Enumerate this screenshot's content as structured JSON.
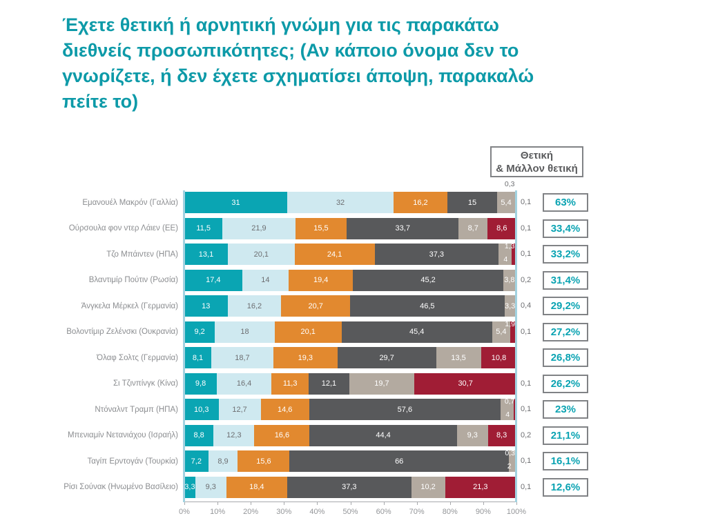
{
  "title_lines": [
    "Έχετε θετική ή αρνητική γνώμη για τις παρακάτω",
    "διεθνείς προσωπικότητες;  (Αν κάποιο όνομα δεν το",
    "γνωρίζετε, ή δεν έχετε σχηματίσει άποψη, παρακαλώ",
    "πείτε το)"
  ],
  "legend_box": {
    "line1": "Θετική",
    "line2": "& Μάλλον θετική"
  },
  "colors": {
    "title_teal": "#0d9aa8",
    "pct_teal": "#0aa3b2",
    "box_border": "#808285",
    "label_gray": "#6d6e71",
    "row_label_gray": "#8b8d90",
    "axis_gray": "#a7a9ac",
    "edge_blue": "#a2d2e0",
    "palette": [
      "#0aa5b3",
      "#cfe9f0",
      "#e2892f",
      "#58595b",
      "#b3aaa0",
      "#a01d35"
    ]
  },
  "chart_data": {
    "type": "bar",
    "orientation": "horizontal-stacked",
    "xlim": [
      0,
      100
    ],
    "x_ticks": [
      "0%",
      "10%",
      "20%",
      "30%",
      "40%",
      "50%",
      "60%",
      "70%",
      "80%",
      "90%",
      "100%"
    ],
    "legend": "Θετική & Μάλλον θετική",
    "segment_colors": [
      "#0aa5b3",
      "#cfe9f0",
      "#e2892f",
      "#58595b",
      "#b3aaa0",
      "#a01d35"
    ],
    "rows": [
      {
        "label": "Εμανουέλ Μακρόν (Γαλλία)",
        "pct": "63%",
        "outside": "0,1",
        "segments": [
          {
            "v": 31,
            "t": "31",
            "pos": "in"
          },
          {
            "v": 32,
            "t": "32",
            "pos": "in"
          },
          {
            "v": 16.2,
            "t": "16,2",
            "pos": "in"
          },
          {
            "v": 15,
            "t": "15",
            "pos": "in"
          },
          {
            "v": 5.4,
            "t": "5,4",
            "pos": "in"
          },
          {
            "v": 0.3,
            "t": "0,3",
            "pos": "top-out"
          }
        ]
      },
      {
        "label": "Ούρσουλα φον ντερ Λάιεν (ΕΕ)",
        "pct": "33,4%",
        "outside": "0,1",
        "segments": [
          {
            "v": 11.5,
            "t": "11,5",
            "pos": "in"
          },
          {
            "v": 21.9,
            "t": "21,9",
            "pos": "in"
          },
          {
            "v": 15.5,
            "t": "15,5",
            "pos": "in"
          },
          {
            "v": 33.7,
            "t": "33,7",
            "pos": "in"
          },
          {
            "v": 8.7,
            "t": "8,7",
            "pos": "in"
          },
          {
            "v": 8.6,
            "t": "8,6",
            "pos": "in"
          }
        ]
      },
      {
        "label": "Τζο Μπάιντεν (ΗΠΑ)",
        "pct": "33,2%",
        "outside": "0,1",
        "segments": [
          {
            "v": 13.1,
            "t": "13,1",
            "pos": "in"
          },
          {
            "v": 20.1,
            "t": "20,1",
            "pos": "in"
          },
          {
            "v": 24.1,
            "t": "24,1",
            "pos": "in"
          },
          {
            "v": 37.3,
            "t": "37,3",
            "pos": "in"
          },
          {
            "v": 4,
            "t": "4",
            "pos": "low-in"
          },
          {
            "v": 1.3,
            "t": "1,3",
            "pos": "top-in"
          }
        ]
      },
      {
        "label": "Βλαντιμίρ Πούτιν (Ρωσία)",
        "pct": "31,4%",
        "outside": "0,2",
        "segments": [
          {
            "v": 17.4,
            "t": "17,4",
            "pos": "in"
          },
          {
            "v": 14,
            "t": "14",
            "pos": "in"
          },
          {
            "v": 19.4,
            "t": "19,4",
            "pos": "in"
          },
          {
            "v": 45.2,
            "t": "45,2",
            "pos": "in"
          },
          {
            "v": 3.8,
            "t": "3,8",
            "pos": "in"
          },
          {
            "v": 0.3,
            "t": "",
            "pos": "none"
          }
        ]
      },
      {
        "label": "Άνγκελα Μέρκελ (Γερμανία)",
        "pct": "29,2%",
        "outside": "0,4",
        "segments": [
          {
            "v": 13,
            "t": "13",
            "pos": "in"
          },
          {
            "v": 16.2,
            "t": "16,2",
            "pos": "in"
          },
          {
            "v": 20.7,
            "t": "20,7",
            "pos": "in"
          },
          {
            "v": 46.5,
            "t": "46,5",
            "pos": "in"
          },
          {
            "v": 3.3,
            "t": "3,3",
            "pos": "in"
          },
          {
            "v": 0.3,
            "t": "",
            "pos": "none"
          }
        ]
      },
      {
        "label": "Βολοντίμιρ Ζελένσκι (Ουκρανία)",
        "pct": "27,2%",
        "outside": "0,1",
        "segments": [
          {
            "v": 9.2,
            "t": "9,2",
            "pos": "in"
          },
          {
            "v": 18,
            "t": "18",
            "pos": "in"
          },
          {
            "v": 20.1,
            "t": "20,1",
            "pos": "in"
          },
          {
            "v": 45.4,
            "t": "45,4",
            "pos": "in"
          },
          {
            "v": 5.4,
            "t": "5,4",
            "pos": "in"
          },
          {
            "v": 1.9,
            "t": "1,9",
            "pos": "top-in"
          }
        ]
      },
      {
        "label": "Όλαφ Σολτς (Γερμανία)",
        "pct": "26,8%",
        "outside": "",
        "segments": [
          {
            "v": 8.1,
            "t": "8,1",
            "pos": "in"
          },
          {
            "v": 18.7,
            "t": "18,7",
            "pos": "in"
          },
          {
            "v": 19.3,
            "t": "19,3",
            "pos": "in"
          },
          {
            "v": 29.7,
            "t": "29,7",
            "pos": "in"
          },
          {
            "v": 13.5,
            "t": "13,5",
            "pos": "in"
          },
          {
            "v": 10.8,
            "t": "10,8",
            "pos": "in"
          }
        ]
      },
      {
        "label": "Σι Τζινπίνγκ (Κίνα)",
        "pct": "26,2%",
        "outside": "0,1",
        "segments": [
          {
            "v": 9.8,
            "t": "9,8",
            "pos": "in"
          },
          {
            "v": 16.4,
            "t": "16,4",
            "pos": "in"
          },
          {
            "v": 11.3,
            "t": "11,3",
            "pos": "in"
          },
          {
            "v": 12.1,
            "t": "12,1",
            "pos": "in"
          },
          {
            "v": 19.7,
            "t": "19,7",
            "pos": "in"
          },
          {
            "v": 30.7,
            "t": "30,7",
            "pos": "in"
          }
        ]
      },
      {
        "label": "Ντόναλντ Τραμπ (ΗΠΑ)",
        "pct": "23%",
        "outside": "0,1",
        "segments": [
          {
            "v": 10.3,
            "t": "10,3",
            "pos": "in"
          },
          {
            "v": 12.7,
            "t": "12,7",
            "pos": "in"
          },
          {
            "v": 14.6,
            "t": "14,6",
            "pos": "in"
          },
          {
            "v": 57.6,
            "t": "57,6",
            "pos": "in"
          },
          {
            "v": 4,
            "t": "4",
            "pos": "low-in"
          },
          {
            "v": 0.7,
            "t": "0,7",
            "pos": "top-in"
          }
        ]
      },
      {
        "label": "Μπενιαμίν Νετανιάχου (Ισραήλ)",
        "pct": "21,1%",
        "outside": "0,2",
        "segments": [
          {
            "v": 8.8,
            "t": "8,8",
            "pos": "in"
          },
          {
            "v": 12.3,
            "t": "12,3",
            "pos": "in"
          },
          {
            "v": 16.6,
            "t": "16,6",
            "pos": "in"
          },
          {
            "v": 44.4,
            "t": "44,4",
            "pos": "in"
          },
          {
            "v": 9.3,
            "t": "9,3",
            "pos": "in"
          },
          {
            "v": 8.3,
            "t": "8,3",
            "pos": "in"
          }
        ]
      },
      {
        "label": "Ταγίπ Ερντογάν (Τουρκία)",
        "pct": "16,1%",
        "outside": "0,1",
        "segments": [
          {
            "v": 7.2,
            "t": "7,2",
            "pos": "in"
          },
          {
            "v": 8.9,
            "t": "8,9",
            "pos": "in"
          },
          {
            "v": 15.6,
            "t": "15,6",
            "pos": "in"
          },
          {
            "v": 66,
            "t": "66",
            "pos": "in"
          },
          {
            "v": 2,
            "t": "2",
            "pos": "low-in"
          },
          {
            "v": 0.3,
            "t": "0,3",
            "pos": "top-in"
          }
        ]
      },
      {
        "label": "Ρίσι Σούνακ (Ηνωμένο Βασίλειο)",
        "pct": "12,6%",
        "outside": "0,1",
        "segments": [
          {
            "v": 3.3,
            "t": "3,3",
            "pos": "in"
          },
          {
            "v": 9.3,
            "t": "9,3",
            "pos": "in"
          },
          {
            "v": 18.4,
            "t": "18,4",
            "pos": "in"
          },
          {
            "v": 37.3,
            "t": "37,3",
            "pos": "in"
          },
          {
            "v": 10.2,
            "t": "10,2",
            "pos": "in"
          },
          {
            "v": 21.3,
            "t": "21,3",
            "pos": "in"
          }
        ]
      }
    ]
  }
}
